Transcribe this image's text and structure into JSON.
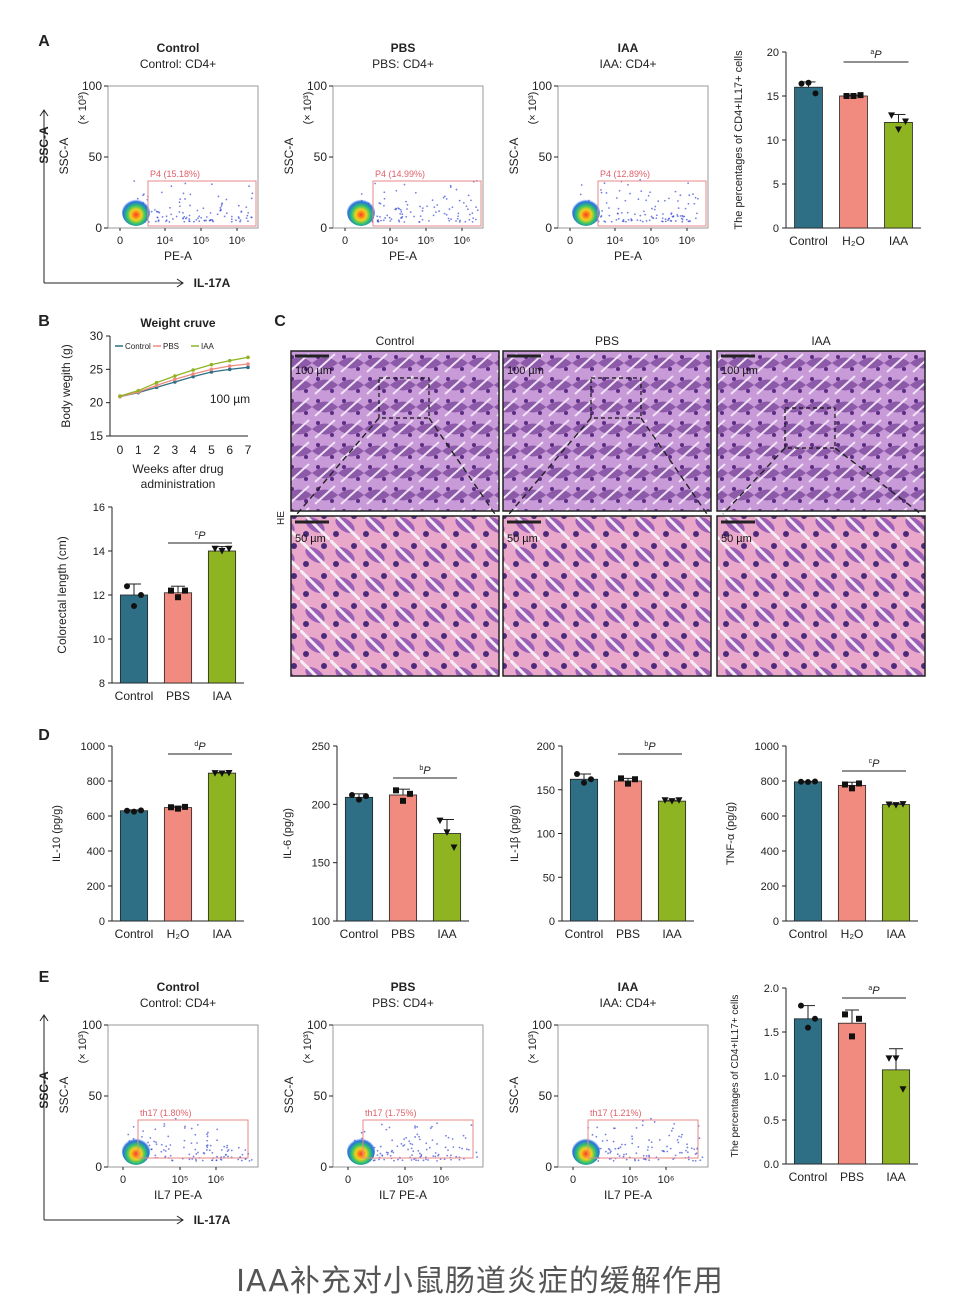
{
  "caption": "IAA补充对小鼠肠道炎症的缓解作用",
  "colors": {
    "control": "#2e6f85",
    "middle": "#f28b7f",
    "iaa": "#8fb421",
    "dots_blue": "#3b4bd6",
    "gate": "#e88a8a"
  },
  "panels": {
    "A": {
      "letter": "A",
      "flow": [
        {
          "title": "Control",
          "subtitle": "Control: CD4+",
          "gate_label": "P4 (15.18%)",
          "percent": 15.18
        },
        {
          "title": "PBS",
          "subtitle": "PBS: CD4+",
          "gate_label": "P4 (14.99%)",
          "percent": 14.99
        },
        {
          "title": "IAA",
          "subtitle": "IAA: CD4+",
          "gate_label": "P4 (12.89%)",
          "percent": 12.89
        }
      ],
      "y_axis": "SSC-A",
      "y_unit": "(× 10³)",
      "y_ticks": [
        "0",
        "50",
        "100"
      ],
      "x_axis": "PE-A",
      "x_ticks": [
        "0",
        "10⁴",
        "10⁵",
        "10⁶"
      ],
      "outer_y": "SSC-A",
      "outer_x": "IL-17A"
    },
    "B": {
      "letter": "B",
      "weight_note": "100 µm"
    },
    "C": {
      "letter": "C",
      "columns": [
        "Control",
        "PBS",
        "IAA"
      ],
      "side_label": "HE",
      "scale_top": "100 µm",
      "scale_bottom": "50 µm"
    },
    "D": {
      "letter": "D"
    },
    "E": {
      "letter": "E",
      "flow": [
        {
          "title": "Control",
          "subtitle": "Control: CD4+",
          "gate_label": "th17 (1.80%)",
          "percent": 1.8
        },
        {
          "title": "PBS",
          "subtitle": "PBS: CD4+",
          "gate_label": "th17 (1.75%)",
          "percent": 1.75
        },
        {
          "title": "IAA",
          "subtitle": "IAA: CD4+",
          "gate_label": "th17 (1.21%)",
          "percent": 1.21
        }
      ],
      "y_axis": "SSC-A",
      "y_unit": "(× 10³)",
      "y_ticks": [
        "0",
        "50",
        "100"
      ],
      "x_axis": "IL7 PE-A",
      "x_ticks": [
        "0",
        "10⁵",
        "10⁶"
      ],
      "outer_y": "SSC-A",
      "outer_x": "IL-17A"
    }
  },
  "chart_data": [
    {
      "id": "A-bar",
      "type": "bar",
      "title": "",
      "categories": [
        "Control",
        "H₂O",
        "IAA"
      ],
      "values": [
        16.0,
        15.0,
        12.0
      ],
      "errors": [
        0.6,
        0.1,
        0.9
      ],
      "points": [
        [
          16.4,
          16.5,
          15.3
        ],
        [
          15.0,
          15.0,
          15.1
        ],
        [
          12.8,
          11.2,
          12.1
        ]
      ],
      "ylabel": "The percentages of CD4+IL17+ cells",
      "ylim": [
        0,
        20
      ],
      "yticks": [
        0,
        5,
        10,
        15,
        20
      ],
      "sig": {
        "label": "aP",
        "sup": "a",
        "text": "P",
        "from": 1,
        "to": 2
      }
    },
    {
      "id": "B-weight",
      "type": "line",
      "title": "Weight cruve",
      "x": [
        0,
        1,
        2,
        3,
        4,
        5,
        6,
        7
      ],
      "series": [
        {
          "name": "Control",
          "color": "#2e6f85",
          "values": [
            20.9,
            21.5,
            22.3,
            23.1,
            23.9,
            24.6,
            25.0,
            25.3
          ]
        },
        {
          "name": "PBS",
          "color": "#f28b7f",
          "values": [
            20.9,
            21.6,
            22.6,
            23.5,
            24.3,
            25.0,
            25.5,
            25.8
          ]
        },
        {
          "name": "IAA",
          "color": "#8fb421",
          "values": [
            21.0,
            21.8,
            23.0,
            24.0,
            24.9,
            25.7,
            26.3,
            26.8
          ]
        }
      ],
      "xlabel": "Weeks after drug administration",
      "ylabel": "Body wegith (g)",
      "ylim": [
        15,
        30
      ],
      "yticks": [
        15,
        20,
        25,
        30
      ]
    },
    {
      "id": "B-length",
      "type": "bar",
      "title": "",
      "categories": [
        "Control",
        "PBS",
        "IAA"
      ],
      "values": [
        12.0,
        12.1,
        14.0
      ],
      "errors": [
        0.5,
        0.3,
        0.2
      ],
      "points": [
        [
          12.4,
          11.5,
          12.0
        ],
        [
          12.2,
          11.9,
          12.2
        ],
        [
          14.1,
          14.0,
          14.1
        ]
      ],
      "ylabel": "Colorectal length (cm)",
      "ylim": [
        8,
        16
      ],
      "yticks": [
        8,
        10,
        12,
        14,
        16
      ],
      "sig": {
        "label": "cP",
        "sup": "c",
        "text": "P",
        "from": 1,
        "to": 2
      }
    },
    {
      "id": "D-il10",
      "type": "bar",
      "title": "",
      "categories": [
        "Control",
        "H₂O",
        "IAA"
      ],
      "values": [
        630,
        648,
        845
      ],
      "errors": [
        5,
        8,
        4
      ],
      "points": [
        [
          630,
          625,
          632
        ],
        [
          650,
          642,
          652
        ],
        [
          845,
          843,
          846
        ]
      ],
      "ylabel": "IL-10 (pg/g)",
      "ylim": [
        0,
        1000
      ],
      "yticks": [
        0,
        200,
        400,
        600,
        800,
        1000
      ],
      "sig": {
        "label": "dP",
        "sup": "d",
        "text": "P",
        "from": 1,
        "to": 2
      }
    },
    {
      "id": "D-il6",
      "type": "bar",
      "title": "",
      "categories": [
        "Control",
        "PBS",
        "IAA"
      ],
      "values": [
        206,
        208,
        175
      ],
      "errors": [
        3,
        5,
        12
      ],
      "points": [
        [
          208,
          204,
          207
        ],
        [
          212,
          203,
          209
        ],
        [
          186,
          176,
          163
        ]
      ],
      "ylabel": "IL-6 (pg/g)",
      "ylim": [
        100,
        250
      ],
      "yticks": [
        100,
        150,
        200,
        250
      ],
      "sig": {
        "label": "bP",
        "sup": "b",
        "text": "P",
        "from": 1,
        "to": 2
      }
    },
    {
      "id": "D-il1b",
      "type": "bar",
      "title": "",
      "categories": [
        "Control",
        "PBS",
        "IAA"
      ],
      "values": [
        162,
        160,
        137
      ],
      "errors": [
        6,
        3,
        1
      ],
      "points": [
        [
          168,
          158,
          162
        ],
        [
          163,
          157,
          162
        ],
        [
          138,
          137,
          138
        ]
      ],
      "ylabel": "IL-1β (pg/g)",
      "ylim": [
        0,
        200
      ],
      "yticks": [
        0,
        50,
        100,
        150,
        200
      ],
      "sig": {
        "label": "bP",
        "sup": "b",
        "text": "P",
        "from": 1,
        "to": 2
      }
    },
    {
      "id": "D-tnf",
      "type": "bar",
      "title": "",
      "categories": [
        "Control",
        "H₂O",
        "IAA"
      ],
      "values": [
        795,
        775,
        665
      ],
      "errors": [
        3,
        18,
        5
      ],
      "points": [
        [
          796,
          794,
          797
        ],
        [
          780,
          758,
          786
        ],
        [
          666,
          662,
          668
        ]
      ],
      "ylabel": "TNF-α (pg/g)",
      "ylim": [
        0,
        1000
      ],
      "yticks": [
        0,
        200,
        400,
        600,
        800,
        1000
      ],
      "sig": {
        "label": "cP",
        "sup": "c",
        "text": "P",
        "from": 1,
        "to": 2
      }
    },
    {
      "id": "E-bar",
      "type": "bar",
      "title": "",
      "categories": [
        "Control",
        "PBS",
        "IAA"
      ],
      "values": [
        1.65,
        1.6,
        1.07
      ],
      "errors": [
        0.15,
        0.15,
        0.24
      ],
      "points": [
        [
          1.8,
          1.55,
          1.65
        ],
        [
          1.7,
          1.45,
          1.65
        ],
        [
          1.2,
          1.2,
          0.85
        ]
      ],
      "ylabel": "The percentages of CD4+IL17+ cells",
      "ylim": [
        0,
        2.0
      ],
      "yticks": [
        "0.0",
        "0.5",
        "1.0",
        "1.5",
        "2.0"
      ],
      "sig": {
        "label": "aP",
        "sup": "a",
        "text": "P",
        "from": 1,
        "to": 2
      }
    }
  ]
}
